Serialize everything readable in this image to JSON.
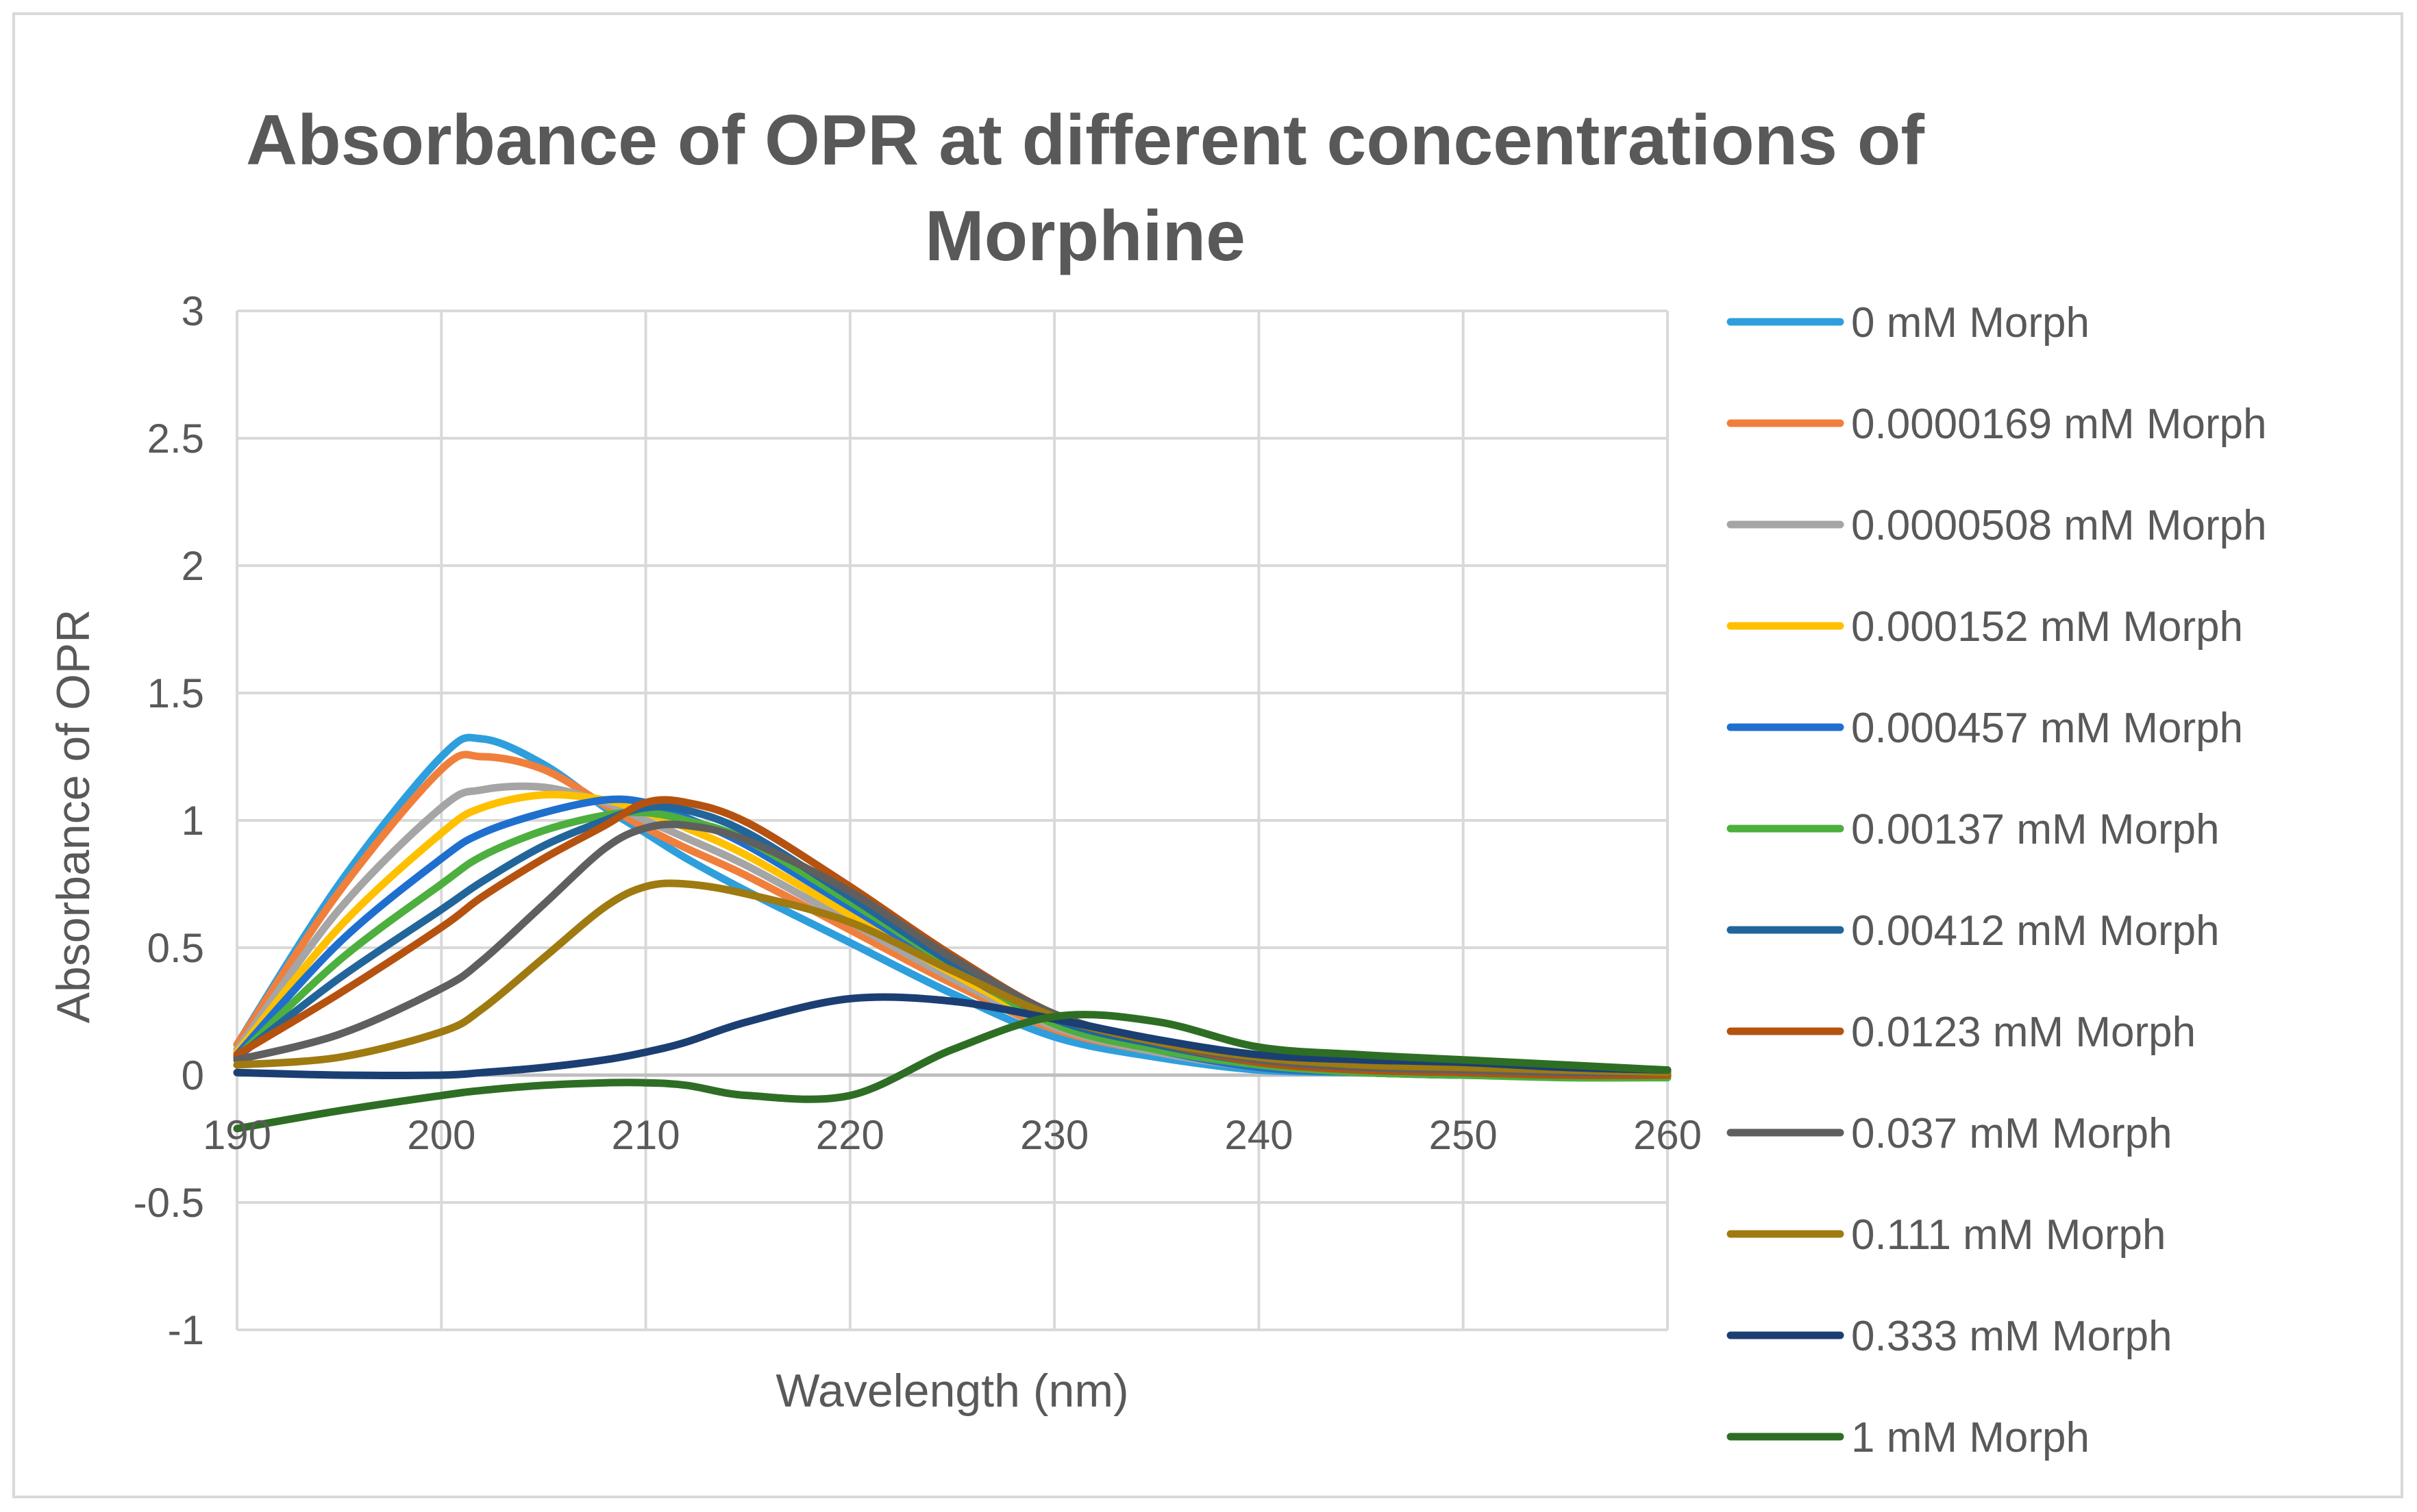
{
  "chart_data": {
    "type": "line",
    "title_lines": [
      "Absorbance of OPR at different concentrations of",
      "Morphine"
    ],
    "xlabel": "Wavelength (nm)",
    "ylabel": "Absorbance of OPR",
    "xlim": [
      190,
      260
    ],
    "ylim": [
      -1,
      3
    ],
    "x_ticks": [
      "190",
      "200",
      "210",
      "220",
      "230",
      "240",
      "250",
      "260"
    ],
    "y_ticks": [
      "3",
      "2.5",
      "2",
      "1.5",
      "1",
      "0.5",
      "0",
      "-0.5",
      "-1"
    ],
    "grid": true,
    "legend_position": "right",
    "x": [
      190,
      195,
      200,
      202,
      205,
      208,
      210,
      212,
      215,
      220,
      225,
      230,
      235,
      240,
      245,
      250,
      255,
      260
    ],
    "series": [
      {
        "name": "0 mM Morph",
        "color": "#2e9fdc",
        "values": [
          0.12,
          0.75,
          1.25,
          1.32,
          1.22,
          1.05,
          0.95,
          0.85,
          0.72,
          0.52,
          0.32,
          0.15,
          0.07,
          0.02,
          0.01,
          0.0,
          0.0,
          0.0
        ]
      },
      {
        "name": "0.0000169 mM Morph",
        "color": "#f07f3c",
        "values": [
          0.12,
          0.72,
          1.2,
          1.25,
          1.2,
          1.06,
          0.97,
          0.89,
          0.78,
          0.57,
          0.36,
          0.18,
          0.09,
          0.03,
          0.01,
          0.0,
          0.0,
          0.0
        ]
      },
      {
        "name": "0.0000508 mM Morph",
        "color": "#a5a5a5",
        "values": [
          0.1,
          0.65,
          1.05,
          1.12,
          1.13,
          1.07,
          1.0,
          0.93,
          0.82,
          0.6,
          0.38,
          0.19,
          0.09,
          0.03,
          0.01,
          0.0,
          0.0,
          0.0
        ]
      },
      {
        "name": "0.000152 mM Morph",
        "color": "#ffc000",
        "values": [
          0.09,
          0.58,
          0.95,
          1.05,
          1.1,
          1.08,
          1.03,
          0.97,
          0.86,
          0.63,
          0.4,
          0.2,
          0.1,
          0.03,
          0.01,
          0.0,
          0.0,
          0.0
        ]
      },
      {
        "name": "0.000457 mM Morph",
        "color": "#1f6fcf",
        "values": [
          0.08,
          0.52,
          0.85,
          0.95,
          1.03,
          1.08,
          1.07,
          1.01,
          0.9,
          0.66,
          0.42,
          0.21,
          0.1,
          0.03,
          0.01,
          0.0,
          0.0,
          0.0
        ]
      },
      {
        "name": "0.00137 mM Morph",
        "color": "#4caf3e",
        "values": [
          0.07,
          0.45,
          0.75,
          0.86,
          0.96,
          1.02,
          1.03,
          1.0,
          0.92,
          0.68,
          0.43,
          0.2,
          0.1,
          0.04,
          0.01,
          0.0,
          -0.01,
          -0.01
        ]
      },
      {
        "name": "0.00412 mM Morph",
        "color": "#22659a",
        "values": [
          0.07,
          0.38,
          0.65,
          0.76,
          0.9,
          1.0,
          1.05,
          1.04,
          0.95,
          0.7,
          0.44,
          0.22,
          0.12,
          0.05,
          0.02,
          0.01,
          0.0,
          0.0
        ]
      },
      {
        "name": "0.0123 mM Morph",
        "color": "#b5520f",
        "values": [
          0.08,
          0.32,
          0.58,
          0.7,
          0.85,
          0.98,
          1.07,
          1.07,
          0.99,
          0.74,
          0.47,
          0.24,
          0.13,
          0.05,
          0.02,
          0.01,
          0.0,
          0.0
        ]
      },
      {
        "name": "0.037 mM Morph",
        "color": "#5f5f5f",
        "values": [
          0.06,
          0.16,
          0.34,
          0.45,
          0.67,
          0.89,
          0.97,
          0.98,
          0.92,
          0.72,
          0.46,
          0.24,
          0.13,
          0.06,
          0.03,
          0.02,
          0.01,
          0.01
        ]
      },
      {
        "name": "0.111 mM Morph",
        "color": "#9e7a10",
        "values": [
          0.04,
          0.07,
          0.17,
          0.26,
          0.46,
          0.66,
          0.74,
          0.75,
          0.71,
          0.6,
          0.41,
          0.23,
          0.13,
          0.07,
          0.04,
          0.03,
          0.02,
          0.01
        ]
      },
      {
        "name": "0.333 mM Morph",
        "color": "#1b3f73",
        "values": [
          0.01,
          0.0,
          0.0,
          0.01,
          0.03,
          0.06,
          0.09,
          0.13,
          0.21,
          0.3,
          0.29,
          0.22,
          0.14,
          0.08,
          0.06,
          0.05,
          0.03,
          0.02
        ]
      },
      {
        "name": "1 mM Morph",
        "color": "#2e6e24",
        "values": [
          -0.21,
          -0.14,
          -0.08,
          -0.06,
          -0.04,
          -0.03,
          -0.03,
          -0.04,
          -0.08,
          -0.08,
          0.1,
          0.23,
          0.21,
          0.11,
          0.08,
          0.06,
          0.04,
          0.02
        ]
      }
    ]
  }
}
